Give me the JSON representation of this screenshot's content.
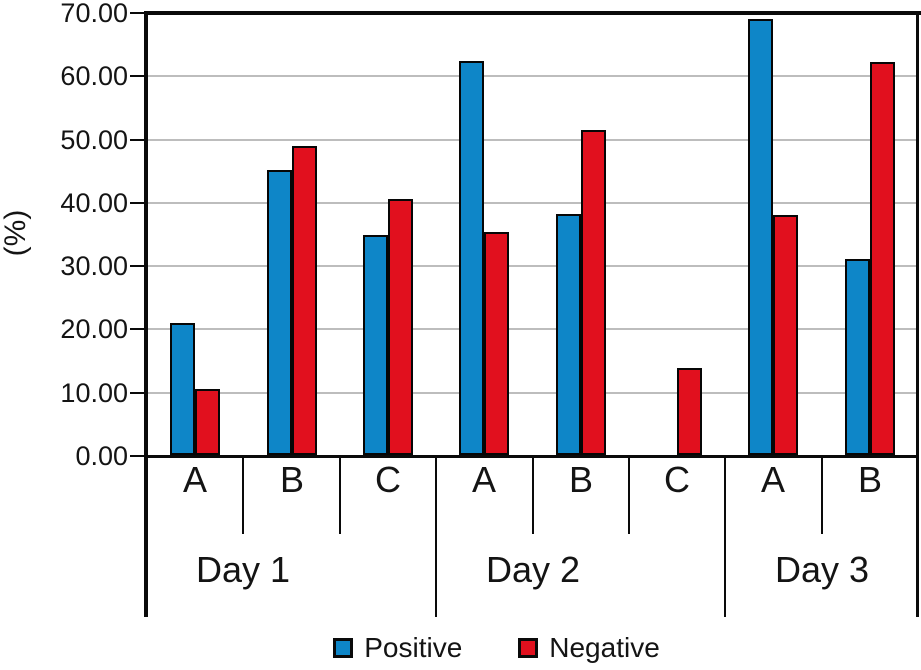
{
  "chart_data": {
    "type": "bar",
    "title": "",
    "ylabel": "(%)",
    "ylim": [
      0,
      70
    ],
    "yticks": [
      0,
      10,
      20,
      30,
      40,
      50,
      60,
      70
    ],
    "ytick_labels": [
      "0.00",
      "10.00",
      "20.00",
      "30.00",
      "40.00",
      "50.00",
      "60.00",
      "70.00"
    ],
    "grid": true,
    "legend_position": "bottom",
    "groups": [
      {
        "label": "Day 1",
        "categories": [
          "A",
          "B",
          "C"
        ]
      },
      {
        "label": "Day 2",
        "categories": [
          "A",
          "B",
          "C"
        ]
      },
      {
        "label": "Day 3",
        "categories": [
          "A",
          "B"
        ]
      }
    ],
    "series": [
      {
        "name": "Positive",
        "color": "#0e86c8",
        "values": [
          [
            20.8,
            45.0,
            34.7
          ],
          [
            62.2,
            38.1,
            null
          ],
          [
            68.9,
            31.0
          ]
        ]
      },
      {
        "name": "Negative",
        "color": "#e1101e",
        "values": [
          [
            10.4,
            48.8,
            40.5
          ],
          [
            35.2,
            51.4,
            13.7
          ],
          [
            38.0,
            62.1
          ]
        ]
      }
    ]
  },
  "colors": {
    "axis": "#0a0a0a",
    "grid": "#bdbdbd",
    "background": "#ffffff",
    "positive": "#0e86c8",
    "negative": "#e1101e"
  }
}
